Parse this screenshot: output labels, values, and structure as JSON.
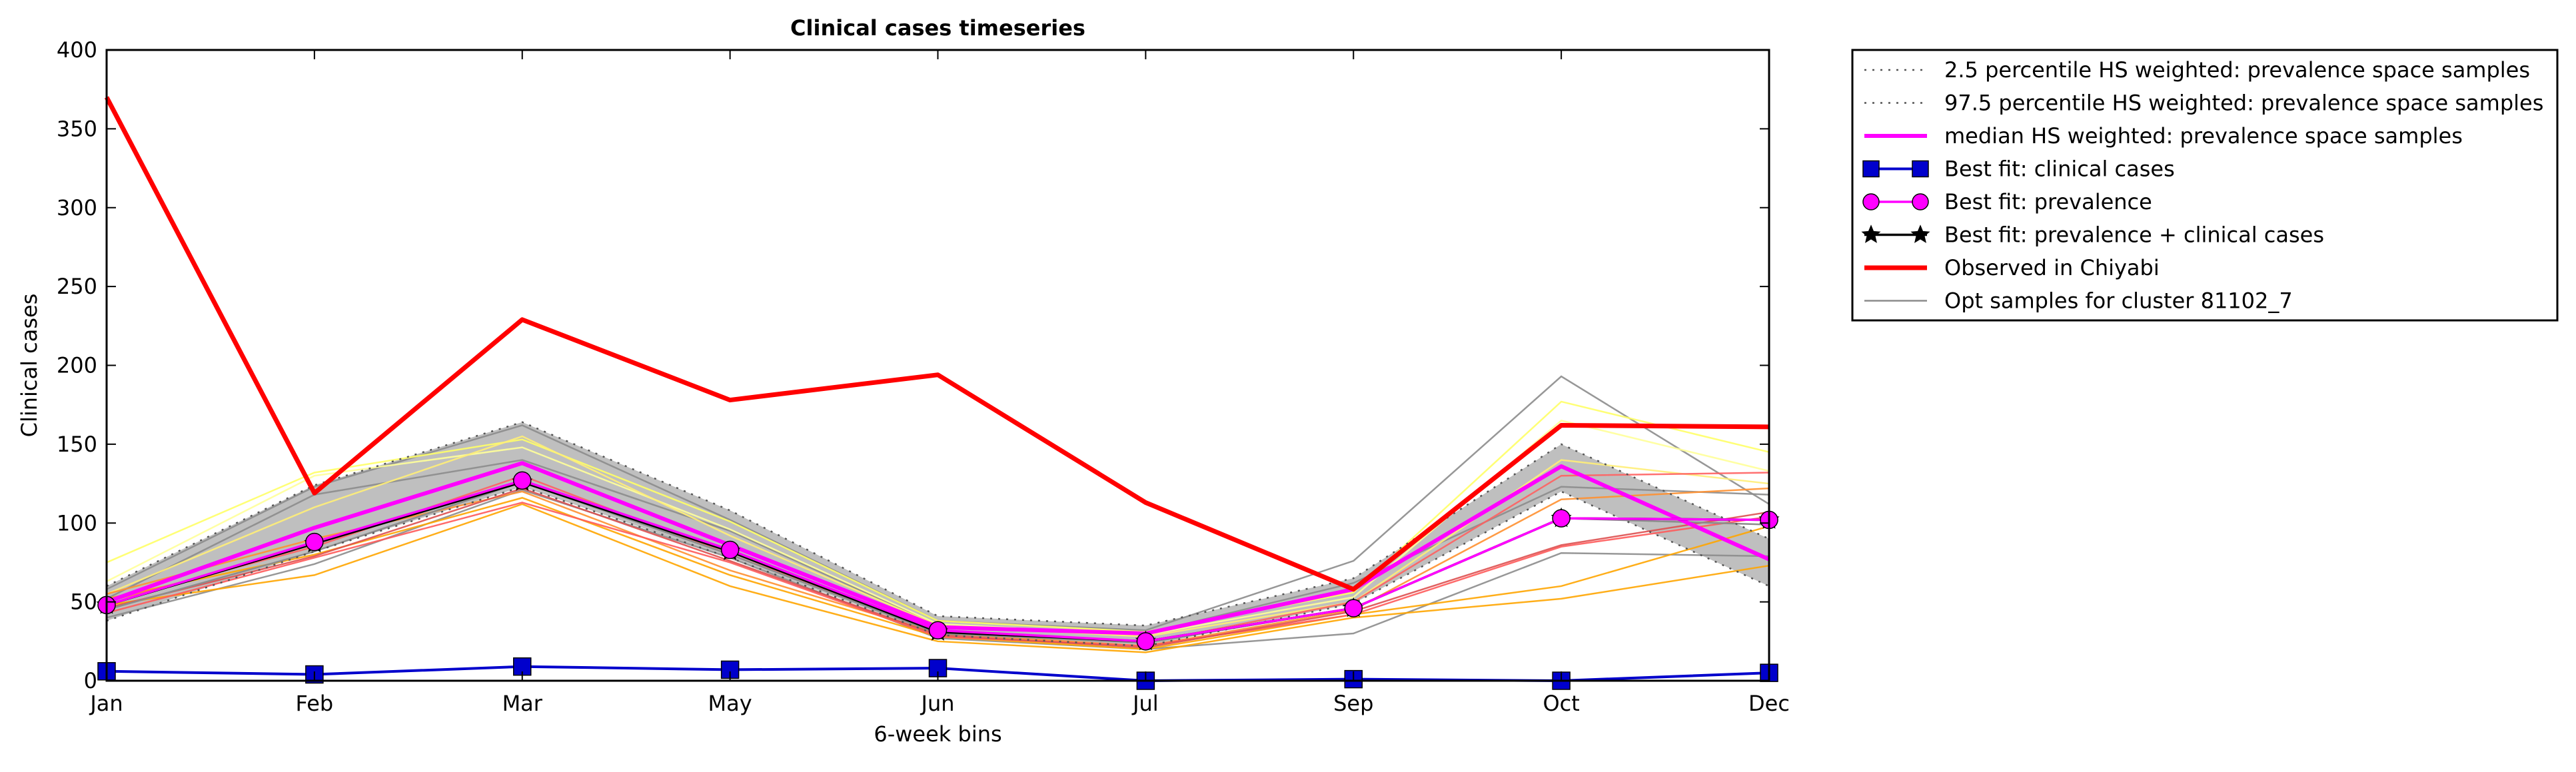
{
  "chart_data": {
    "type": "line",
    "title": "Clinical cases timeseries",
    "xlabel": "6-week bins",
    "ylabel": "Clinical cases",
    "categories": [
      "Jan",
      "Feb",
      "Mar",
      "May",
      "Jun",
      "Jul",
      "Sep",
      "Oct",
      "Dec"
    ],
    "ylim": [
      0,
      400
    ],
    "yticks": [
      0,
      50,
      100,
      150,
      200,
      250,
      300,
      350,
      400
    ],
    "grid": false,
    "legend_position": "outside right, top",
    "band": {
      "lower": [
        38,
        82,
        123,
        78,
        29,
        22,
        49,
        120,
        60
      ],
      "upper": [
        60,
        124,
        164,
        108,
        41,
        35,
        65,
        150,
        90
      ],
      "fill": "#7f7f7f"
    },
    "series": [
      {
        "name": "2.5 percentile HS weighted: prevalence space samples",
        "legend_label": "2.5 percentile HS weighted: prevalence space samples",
        "values": [
          38,
          82,
          123,
          78,
          29,
          22,
          49,
          120,
          60
        ],
        "color": "#555555",
        "style": "dotted",
        "marker": "none"
      },
      {
        "name": "97.5 percentile HS weighted: prevalence space samples",
        "legend_label": "97.5 percentile HS weighted: prevalence space samples",
        "values": [
          60,
          124,
          164,
          108,
          41,
          35,
          65,
          150,
          90
        ],
        "color": "#555555",
        "style": "dotted",
        "marker": "none"
      },
      {
        "name": "median HS weighted: prevalence space samples",
        "legend_label": "median HS weighted: prevalence space samples",
        "values": [
          50,
          97,
          138,
          86,
          34,
          30,
          58,
          136,
          77
        ],
        "color": "#ff00ff",
        "style": "solid",
        "marker": "none"
      },
      {
        "name": "Best fit: clinical cases",
        "legend_label": "Best fit: clinical cases",
        "values": [
          6,
          4,
          9,
          7,
          8,
          0,
          1,
          0,
          5
        ],
        "color": "#0000cc",
        "style": "solid",
        "marker": "square"
      },
      {
        "name": "Best fit: prevalence",
        "legend_label": "Best fit: prevalence",
        "values": [
          48,
          88,
          127,
          83,
          32,
          25,
          46,
          103,
          102
        ],
        "color": "#ff00ff",
        "style": "solid",
        "marker": "circle"
      },
      {
        "name": "Best fit: prevalence + clinical cases",
        "legend_label": "Best fit: prevalence + clinical cases",
        "values": [
          48,
          87,
          126,
          82,
          31,
          25,
          46,
          103,
          102
        ],
        "color": "#000000",
        "style": "solid",
        "marker": "star"
      },
      {
        "name": "Observed in Chiyabi",
        "legend_label": "Observed in Chiyabi",
        "values": [
          370,
          119,
          229,
          178,
          194,
          113,
          58,
          162,
          161
        ],
        "color": "#ff0000",
        "style": "solid",
        "marker": "none"
      },
      {
        "name": "Opt samples for cluster 81102_7",
        "legend_label": "Opt samples for cluster 81102_7",
        "values": [
          45,
          82,
          126,
          80,
          30,
          24,
          46,
          103,
          99
        ],
        "color": "#8c8c8c",
        "style": "solid",
        "marker": "none"
      }
    ],
    "samples": [
      {
        "color": "#8c8c8c",
        "values": [
          58,
          123,
          162,
          102,
          38,
          32,
          76,
          193,
          112
        ]
      },
      {
        "color": "#8c8c8c",
        "values": [
          40,
          74,
          121,
          78,
          27,
          20,
          30,
          81,
          79
        ]
      },
      {
        "color": "#8c8c8c",
        "values": [
          52,
          118,
          140,
          95,
          35,
          30,
          62,
          123,
          118
        ]
      },
      {
        "color": "#ffff66",
        "values": [
          75,
          132,
          153,
          101,
          38,
          31,
          56,
          177,
          145
        ]
      },
      {
        "color": "#ffff99",
        "values": [
          63,
          130,
          148,
          96,
          36,
          29,
          53,
          165,
          133
        ]
      },
      {
        "color": "#ffee77",
        "values": [
          55,
          110,
          155,
          92,
          35,
          28,
          50,
          140,
          125
        ]
      },
      {
        "color": "#ffa500",
        "values": [
          48,
          67,
          112,
          60,
          25,
          18,
          40,
          52,
          73
        ]
      },
      {
        "color": "#ffa500",
        "values": [
          52,
          80,
          116,
          67,
          28,
          20,
          42,
          60,
          98
        ]
      },
      {
        "color": "#ff9030",
        "values": [
          55,
          90,
          120,
          70,
          30,
          22,
          45,
          115,
          122
        ]
      },
      {
        "color": "#ff5a5a",
        "values": [
          43,
          78,
          113,
          75,
          28,
          22,
          42,
          85,
          104
        ]
      },
      {
        "color": "#ff6060",
        "values": [
          50,
          85,
          130,
          80,
          32,
          24,
          50,
          130,
          132
        ]
      },
      {
        "color": "#dd5050",
        "values": [
          46,
          79,
          122,
          76,
          29,
          21,
          44,
          86,
          107
        ]
      }
    ]
  }
}
